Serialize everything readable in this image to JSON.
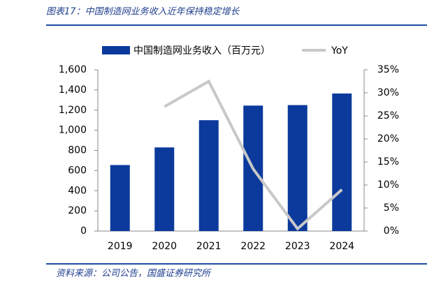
{
  "header": {
    "title": "图表17：中国制造网业务收入近年保持稳定增长"
  },
  "chart_data": {
    "type": "bar_line",
    "categories": [
      "2019",
      "2020",
      "2021",
      "2022",
      "2023",
      "2024"
    ],
    "series": [
      {
        "name": "中国制造网业务收入（百万元）",
        "type": "bar",
        "color": "#0b3a9c",
        "values": [
          655,
          830,
          1100,
          1245,
          1250,
          1365
        ]
      },
      {
        "name": "YoY",
        "type": "line",
        "axis": "y2",
        "color": "#c8c8c8",
        "values": [
          null,
          27,
          32.5,
          13.5,
          0.5,
          9
        ]
      }
    ],
    "ylim": [
      0,
      1600
    ],
    "yticks": [
      0,
      200,
      400,
      600,
      800,
      {
        "value": 1000,
        "label": "1,000"
      },
      {
        "value": 1200,
        "label": "1,200"
      },
      {
        "value": 1400,
        "label": "1,400"
      },
      {
        "value": 1600,
        "label": "1,600"
      }
    ],
    "y2lim": [
      0,
      35
    ],
    "y2ticks": [
      {
        "value": 0,
        "label": "0%"
      },
      {
        "value": 5,
        "label": "5%"
      },
      {
        "value": 10,
        "label": "10%"
      },
      {
        "value": 15,
        "label": "15%"
      },
      {
        "value": 20,
        "label": "20%"
      },
      {
        "value": 25,
        "label": "25%"
      },
      {
        "value": 30,
        "label": "30%"
      },
      {
        "value": 35,
        "label": "35%"
      }
    ],
    "legend": "top"
  },
  "footer": {
    "source": "资料来源：公司公告，国盛证券研究所"
  }
}
